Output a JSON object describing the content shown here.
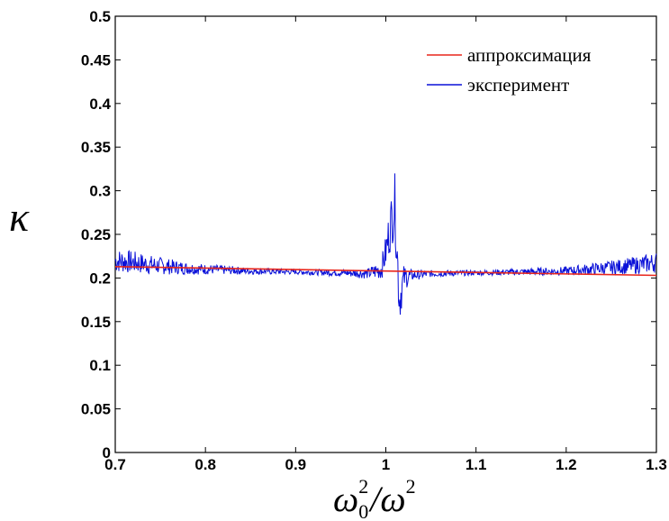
{
  "chart_data": {
    "type": "line",
    "xlim": [
      0.7,
      1.3
    ],
    "ylim": [
      0,
      0.5
    ],
    "xticks": [
      0.7,
      0.8,
      0.9,
      1.0,
      1.1,
      1.2,
      1.3
    ],
    "yticks": [
      0,
      0.05,
      0.1,
      0.15,
      0.2,
      0.25,
      0.3,
      0.35,
      0.4,
      0.45,
      0.5
    ],
    "xtick_labels": [
      "0.7",
      "0.8",
      "0.9",
      "1",
      "1.1",
      "1.2",
      "1.3"
    ],
    "ytick_labels": [
      "0",
      "0.05",
      "0.1",
      "0.15",
      "0.2",
      "0.25",
      "0.3",
      "0.35",
      "0.4",
      "0.45",
      "0.5"
    ],
    "xlabel": {
      "base": "ω",
      "sub": "0",
      "sup": "2",
      "mid": "/ω",
      "sup2": "2"
    },
    "ylabel": "κ",
    "grid": false,
    "legend_position": "top-right",
    "series": [
      {
        "name": "аппроксимация",
        "color": "#e8261c",
        "style": "line",
        "x": [
          0.7,
          1.3
        ],
        "y": [
          0.213,
          0.203
        ]
      },
      {
        "name": "эксперимент",
        "color": "#0a10d8",
        "style": "noisy-line",
        "x": [
          0.7,
          0.72,
          0.74,
          0.76,
          0.78,
          0.8,
          0.85,
          0.9,
          0.95,
          0.98,
          0.995,
          1.0,
          1.005,
          1.01,
          1.015,
          1.02,
          1.03,
          1.05,
          1.1,
          1.15,
          1.2,
          1.25,
          1.28,
          1.3
        ],
        "y": [
          0.22,
          0.218,
          0.215,
          0.213,
          0.211,
          0.21,
          0.208,
          0.207,
          0.206,
          0.205,
          0.21,
          0.23,
          0.26,
          0.285,
          0.175,
          0.2,
          0.203,
          0.205,
          0.206,
          0.207,
          0.208,
          0.212,
          0.215,
          0.218
        ],
        "amplitude": [
          0.014,
          0.013,
          0.011,
          0.009,
          0.007,
          0.006,
          0.004,
          0.003,
          0.004,
          0.006,
          0.012,
          0.02,
          0.03,
          0.035,
          0.03,
          0.015,
          0.006,
          0.004,
          0.003,
          0.004,
          0.005,
          0.008,
          0.01,
          0.012
        ]
      }
    ]
  },
  "colors": {
    "axes": "#000000",
    "background": "#ffffff"
  }
}
